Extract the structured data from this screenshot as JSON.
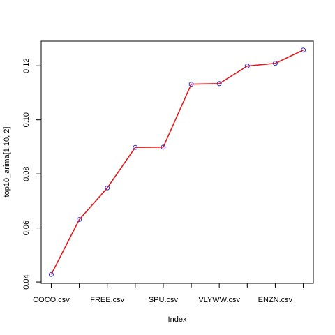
{
  "chart_data": {
    "type": "line",
    "xlabel": "Index",
    "ylabel": "top10_arima[1:10, 2]",
    "x": [
      1,
      2,
      3,
      4,
      5,
      6,
      7,
      8,
      9,
      10
    ],
    "values": [
      0.0428,
      0.0631,
      0.0748,
      0.0898,
      0.0899,
      0.1132,
      0.1134,
      0.1199,
      0.1209,
      0.1258
    ],
    "xticks": [
      1,
      2,
      3,
      4,
      5,
      6,
      7,
      8,
      9,
      10
    ],
    "xtick_labels": [
      {
        "index": 1,
        "label": "COCO.csv"
      },
      {
        "index": 3,
        "label": "FREE.csv"
      },
      {
        "index": 5,
        "label": "SPU.csv"
      },
      {
        "index": 7,
        "label": "VLYWW.csv"
      },
      {
        "index": 9,
        "label": "ENZN.csv"
      }
    ],
    "yticks": [
      "0.04",
      "0.06",
      "0.08",
      "0.10",
      "0.12"
    ],
    "xlim": [
      0.64,
      10.36
    ],
    "ylim": [
      0.0395,
      0.1291
    ],
    "line_color": "#e31a1c",
    "point_color": "#3333cc",
    "grid": false
  }
}
